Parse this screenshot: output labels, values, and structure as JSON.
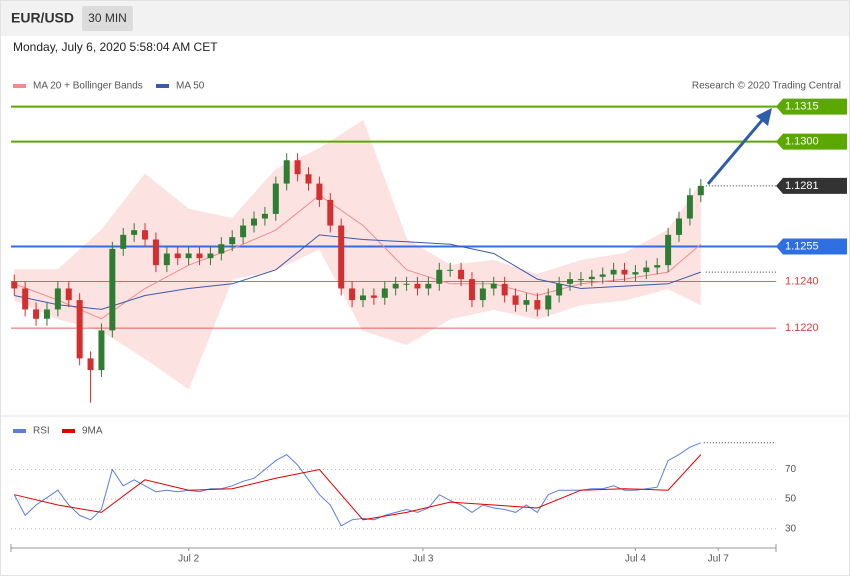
{
  "header": {
    "symbol": "EUR/USD",
    "interval": "30 MIN",
    "timestamp": "Monday, July 6, 2020 5:58:04 AM CET",
    "credit": "Research © 2020 Trading Central"
  },
  "chart_data": [
    {
      "type": "candlestick",
      "legend": [
        {
          "name": "MA 20 + Bollinger Bands",
          "color": "#f28b8b"
        },
        {
          "name": "MA 50",
          "color": "#3b5ca8"
        }
      ],
      "band_color": "#fde2e2",
      "up_color": "#2e7d32",
      "down_color": "#d32f2f",
      "xlim": [
        -0.3,
        69.9
      ],
      "ylim": [
        1.1184,
        1.132
      ],
      "open": [
        1.124,
        1.1237,
        1.1228,
        1.1224,
        1.1228,
        1.1237,
        1.1232,
        1.1207,
        1.1202,
        1.1219,
        1.1254,
        1.126,
        1.1262,
        1.1258,
        1.1247,
        1.1252,
        1.125,
        1.1252,
        1.125,
        1.1252,
        1.1256,
        1.1259,
        1.1264,
        1.1267,
        1.1269,
        1.1282,
        1.1292,
        1.1286,
        1.1282,
        1.1275,
        1.1264,
        1.1237,
        1.1232,
        1.1234,
        1.1233,
        1.1237,
        1.1239,
        1.1239,
        1.1237,
        1.1239,
        1.1245,
        1.1245,
        1.1241,
        1.1232,
        1.1237,
        1.1239,
        1.1234,
        1.123,
        1.1232,
        1.1228,
        1.1234,
        1.1239,
        1.1241,
        1.1241,
        1.1242,
        1.1243,
        1.1245,
        1.1243,
        1.1244,
        1.1246,
        1.1247,
        1.126,
        1.1267,
        1.1277
      ],
      "high": [
        1.1243,
        1.124,
        1.1231,
        1.1231,
        1.124,
        1.124,
        1.1235,
        1.121,
        1.1222,
        1.1257,
        1.1263,
        1.1265,
        1.1265,
        1.1261,
        1.1255,
        1.1255,
        1.1255,
        1.1255,
        1.1255,
        1.1259,
        1.1262,
        1.1267,
        1.127,
        1.1272,
        1.1285,
        1.1295,
        1.1295,
        1.1289,
        1.1285,
        1.1278,
        1.1267,
        1.124,
        1.1237,
        1.1237,
        1.124,
        1.1242,
        1.1242,
        1.1242,
        1.1242,
        1.1248,
        1.1248,
        1.1248,
        1.1244,
        1.124,
        1.1242,
        1.1242,
        1.1237,
        1.1235,
        1.1235,
        1.1237,
        1.1242,
        1.1244,
        1.1244,
        1.1245,
        1.1246,
        1.1248,
        1.1248,
        1.1247,
        1.1249,
        1.125,
        1.1263,
        1.127,
        1.128,
        1.1284
      ],
      "low": [
        1.1234,
        1.1225,
        1.1221,
        1.1221,
        1.1225,
        1.1229,
        1.1204,
        1.1188,
        1.1199,
        1.1216,
        1.1251,
        1.1257,
        1.1255,
        1.1244,
        1.1244,
        1.1247,
        1.1247,
        1.1247,
        1.1247,
        1.1249,
        1.1253,
        1.1256,
        1.1261,
        1.1264,
        1.1266,
        1.1279,
        1.1283,
        1.1279,
        1.1272,
        1.1261,
        1.1234,
        1.1229,
        1.1229,
        1.123,
        1.123,
        1.1234,
        1.1236,
        1.1234,
        1.1234,
        1.1236,
        1.1242,
        1.1238,
        1.1229,
        1.1229,
        1.1234,
        1.1231,
        1.1227,
        1.1227,
        1.1225,
        1.1225,
        1.1231,
        1.1236,
        1.1238,
        1.1238,
        1.1239,
        1.124,
        1.124,
        1.124,
        1.1241,
        1.1243,
        1.1244,
        1.1257,
        1.1264,
        1.1274
      ],
      "close": [
        1.1237,
        1.1228,
        1.1224,
        1.1228,
        1.1237,
        1.1232,
        1.1207,
        1.1202,
        1.1219,
        1.1254,
        1.126,
        1.1262,
        1.1258,
        1.1247,
        1.1252,
        1.125,
        1.1252,
        1.125,
        1.1252,
        1.1256,
        1.1259,
        1.1264,
        1.1267,
        1.1269,
        1.1282,
        1.1292,
        1.1286,
        1.1282,
        1.1275,
        1.1264,
        1.1237,
        1.1232,
        1.1234,
        1.1233,
        1.1237,
        1.1239,
        1.1239,
        1.1237,
        1.1239,
        1.1245,
        1.1245,
        1.1241,
        1.1232,
        1.1237,
        1.1239,
        1.1234,
        1.123,
        1.1232,
        1.1228,
        1.1234,
        1.1239,
        1.1241,
        1.1241,
        1.1242,
        1.1243,
        1.1245,
        1.1243,
        1.1244,
        1.1246,
        1.1247,
        1.126,
        1.1267,
        1.1277,
        1.1281
      ],
      "overlay_x": [
        0,
        4,
        8,
        12,
        16,
        20,
        24,
        28,
        32,
        36,
        40,
        44,
        48,
        52,
        56,
        60,
        63
      ],
      "bb_upper": [
        1.1245,
        1.1245,
        1.1262,
        1.1286,
        1.1271,
        1.1267,
        1.1288,
        1.1297,
        1.1309,
        1.1258,
        1.1247,
        1.1249,
        1.1243,
        1.1249,
        1.1252,
        1.1262,
        1.1282
      ],
      "bb_lower": [
        1.1232,
        1.1224,
        1.1219,
        1.1207,
        1.1194,
        1.1241,
        1.1245,
        1.1254,
        1.1219,
        1.1213,
        1.1224,
        1.1228,
        1.1224,
        1.123,
        1.1232,
        1.1237,
        1.123
      ],
      "ma20": [
        1.1239,
        1.1232,
        1.1224,
        1.1237,
        1.1247,
        1.1254,
        1.1262,
        1.1277,
        1.1264,
        1.1245,
        1.1239,
        1.1239,
        1.1234,
        1.1239,
        1.1241,
        1.1244,
        1.1256
      ],
      "ma50": [
        1.1234,
        1.123,
        1.1228,
        1.1234,
        1.1237,
        1.1239,
        1.1245,
        1.126,
        1.1258,
        1.1257,
        1.1256,
        1.1252,
        1.1241,
        1.1237,
        1.1238,
        1.1239,
        1.1244
      ],
      "levels": [
        {
          "value": 1.1315,
          "label": "1.1315",
          "color": "#5aa800",
          "line": "solid",
          "box": true
        },
        {
          "value": 1.13,
          "label": "1.1300",
          "color": "#5aa800",
          "line": "solid",
          "box": true
        },
        {
          "value": 1.1281,
          "label": "1.1281",
          "color": "#333333",
          "line": "dotted",
          "box": true
        },
        {
          "value": 1.1255,
          "label": "1.1255",
          "color": "#2f6fe4",
          "line": "solid",
          "box": true
        },
        {
          "value": 1.124,
          "label": "1.1240",
          "color": "#e23b3b",
          "line": "thin",
          "box": false
        },
        {
          "value": 1.122,
          "label": "1.1220",
          "color": "#e23b3b",
          "line": "thin",
          "box": false
        }
      ]
    },
    {
      "type": "line",
      "xlim": [
        -0.3,
        69.9
      ],
      "ylim": [
        17,
        100
      ],
      "yticks": [
        30,
        50,
        70
      ],
      "xticks": [
        {
          "value": 16,
          "label": "Jul 2"
        },
        {
          "value": 37.5,
          "label": "Jul 3"
        },
        {
          "value": 57,
          "label": "Jul 4"
        },
        {
          "value": 64.6,
          "label": "Jul 7"
        }
      ],
      "series": [
        {
          "name": "RSI",
          "color": "#5b7fdb",
          "values": [
            53,
            39,
            46,
            51,
            56,
            46,
            39,
            36,
            43,
            70,
            59,
            63,
            59,
            55,
            56,
            55,
            56,
            55,
            57,
            57,
            59,
            62,
            64,
            70,
            76,
            80,
            73,
            63,
            53,
            46,
            32,
            36,
            37,
            36,
            39,
            41,
            43,
            41,
            44,
            53,
            49,
            46,
            41,
            46,
            44,
            43,
            41,
            46,
            41,
            53,
            56,
            56,
            56,
            57,
            57,
            59,
            56,
            56,
            57,
            58,
            76,
            80,
            85,
            88
          ]
        },
        {
          "name": "9MA",
          "color": "#e00000",
          "x": [
            0,
            4,
            8,
            12,
            16,
            20,
            24,
            28,
            32,
            36,
            40,
            44,
            48,
            52,
            56,
            60,
            63
          ],
          "values": [
            53,
            46,
            41,
            63,
            56,
            57,
            64,
            70,
            36,
            41,
            48,
            46,
            44,
            56,
            57,
            56,
            80
          ]
        }
      ]
    }
  ]
}
